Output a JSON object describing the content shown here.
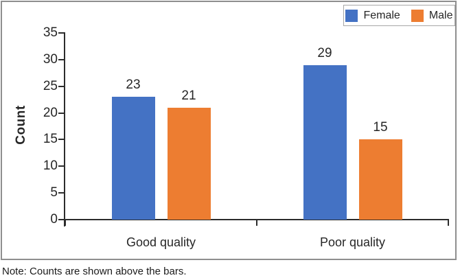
{
  "chart_data": {
    "type": "bar",
    "categories": [
      "Good quality",
      "Poor quality"
    ],
    "series": [
      {
        "name": "Female",
        "color": "#4472C4",
        "values": [
          23,
          29
        ]
      },
      {
        "name": "Male",
        "color": "#ED7D31",
        "values": [
          21,
          15
        ]
      }
    ],
    "title": "",
    "xlabel": "",
    "ylabel": "Count",
    "ylim": [
      0,
      35
    ],
    "yticks": [
      0,
      5,
      10,
      15,
      20,
      25,
      30,
      35
    ],
    "grid": false,
    "legend_position": "top-right",
    "data_labels": true
  },
  "note": "Note: Counts are shown above the bars.",
  "colors": {
    "female_bar": "#4472C4",
    "male_bar": "#ED7D31",
    "axis": "#2b2b2b",
    "text": "#262626",
    "frame_border": "#8e8e8e",
    "legend_border": "#a6a6a6"
  }
}
